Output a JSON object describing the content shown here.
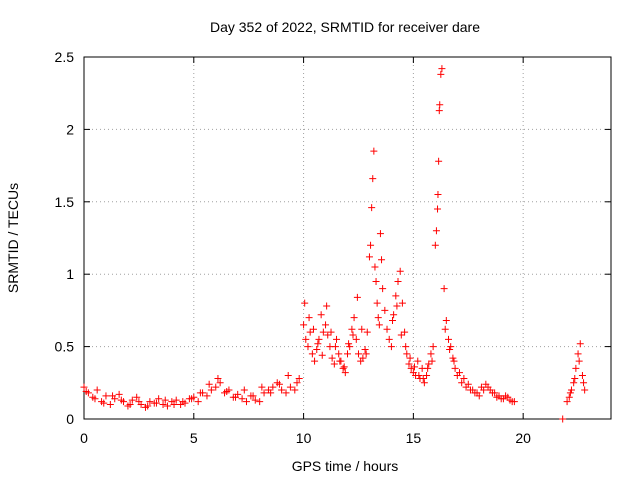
{
  "chart_data": {
    "type": "scatter",
    "title": "Day 352 of 2022, SRMTID for receiver dare",
    "xlabel": "GPS time / hours",
    "ylabel": "SRMTID / TECUs",
    "xlim": [
      0,
      24
    ],
    "ylim": [
      0,
      2.5
    ],
    "xticks": [
      "0",
      "5",
      "10",
      "15",
      "20"
    ],
    "xtick_values": [
      0,
      5,
      10,
      15,
      20
    ],
    "yticks": [
      "0",
      "0.5",
      "1",
      "1.5",
      "2",
      "2.5"
    ],
    "ytick_values": [
      0,
      0.5,
      1,
      1.5,
      2,
      2.5
    ],
    "grid": true,
    "marker": "+",
    "color": "#ff0000",
    "series": [
      {
        "name": "SRMTID",
        "x": [
          0.0,
          0.2,
          0.4,
          0.6,
          0.8,
          1.0,
          1.2,
          1.4,
          1.6,
          1.8,
          2.0,
          2.2,
          2.4,
          2.6,
          2.8,
          3.0,
          3.2,
          3.4,
          3.6,
          3.8,
          4.0,
          4.2,
          4.4,
          4.6,
          4.8,
          5.0,
          5.2,
          5.4,
          5.6,
          5.8,
          6.0,
          6.2,
          6.4,
          6.6,
          6.8,
          7.0,
          7.2,
          7.4,
          7.6,
          7.8,
          8.0,
          8.2,
          8.4,
          8.6,
          8.8,
          9.0,
          9.2,
          9.4,
          9.6,
          9.8,
          10.0,
          10.1,
          10.2,
          10.3,
          10.4,
          10.5,
          10.6,
          10.7,
          10.8,
          10.9,
          11.0,
          11.1,
          11.2,
          11.3,
          11.4,
          11.5,
          11.6,
          11.7,
          11.8,
          11.9,
          12.0,
          12.1,
          12.2,
          12.3,
          12.4,
          12.5,
          12.6,
          12.7,
          12.8,
          12.9,
          13.0,
          13.05,
          13.1,
          13.15,
          13.2,
          13.25,
          13.3,
          13.35,
          13.4,
          13.45,
          13.5,
          13.55,
          13.6,
          13.7,
          13.8,
          13.9,
          14.0,
          14.1,
          14.2,
          14.3,
          14.4,
          14.5,
          14.6,
          14.7,
          14.8,
          14.9,
          15.0,
          15.1,
          15.2,
          15.3,
          15.4,
          15.5,
          15.6,
          15.7,
          15.8,
          15.9,
          16.0,
          16.05,
          16.1,
          16.12,
          16.15,
          16.18,
          16.2,
          16.25,
          16.3,
          16.4,
          16.5,
          16.6,
          16.7,
          16.8,
          16.9,
          17.0,
          17.2,
          17.4,
          17.6,
          17.8,
          18.0,
          18.2,
          18.4,
          18.6,
          18.8,
          19.0,
          19.2,
          19.4,
          19.6,
          21.8,
          22.0,
          22.1,
          22.2,
          22.3,
          22.4,
          22.5,
          22.6,
          22.7,
          22.8,
          0.1,
          0.5,
          0.9,
          1.3,
          1.7,
          2.1,
          2.5,
          2.9,
          3.3,
          3.7,
          4.1,
          4.5,
          4.9,
          5.3,
          5.7,
          6.1,
          6.5,
          6.9,
          7.3,
          7.7,
          8.1,
          8.5,
          8.9,
          9.3,
          9.7,
          10.05,
          10.25,
          10.45,
          10.65,
          10.85,
          11.05,
          11.25,
          11.45,
          11.65,
          11.85,
          12.05,
          12.25,
          12.45,
          12.65,
          12.85,
          14.05,
          14.25,
          14.45,
          14.65,
          14.85,
          15.05,
          15.25,
          15.45,
          15.65,
          15.85,
          16.45,
          16.65,
          16.85,
          17.1,
          17.3,
          17.5,
          17.7,
          17.9,
          18.1,
          18.3,
          18.5,
          18.7,
          18.9,
          19.1,
          19.3,
          19.5,
          22.15,
          22.35,
          22.55,
          22.75
        ],
        "y": [
          0.22,
          0.18,
          0.15,
          0.2,
          0.12,
          0.16,
          0.1,
          0.14,
          0.17,
          0.12,
          0.09,
          0.13,
          0.15,
          0.1,
          0.08,
          0.12,
          0.11,
          0.14,
          0.1,
          0.09,
          0.12,
          0.13,
          0.1,
          0.11,
          0.14,
          0.15,
          0.12,
          0.18,
          0.16,
          0.2,
          0.22,
          0.25,
          0.18,
          0.2,
          0.15,
          0.17,
          0.14,
          0.12,
          0.16,
          0.13,
          0.12,
          0.18,
          0.2,
          0.22,
          0.25,
          0.2,
          0.18,
          0.22,
          0.2,
          0.28,
          0.65,
          0.55,
          0.5,
          0.6,
          0.45,
          0.4,
          0.48,
          0.55,
          0.72,
          0.6,
          0.65,
          0.58,
          0.5,
          0.42,
          0.38,
          0.55,
          0.45,
          0.4,
          0.35,
          0.32,
          0.45,
          0.5,
          0.62,
          0.7,
          0.55,
          0.45,
          0.4,
          0.42,
          0.48,
          0.6,
          1.12,
          1.2,
          1.46,
          1.66,
          1.85,
          1.05,
          0.95,
          0.8,
          0.7,
          0.65,
          1.28,
          1.1,
          0.9,
          0.75,
          0.62,
          0.55,
          0.5,
          0.72,
          0.85,
          0.95,
          1.02,
          0.8,
          0.6,
          0.45,
          0.38,
          0.35,
          0.32,
          0.3,
          0.4,
          0.28,
          0.35,
          0.25,
          0.3,
          0.38,
          0.45,
          0.5,
          1.2,
          1.3,
          1.45,
          1.55,
          1.78,
          2.13,
          2.17,
          2.38,
          2.42,
          0.9,
          0.68,
          0.55,
          0.5,
          0.42,
          0.35,
          0.3,
          0.25,
          0.22,
          0.2,
          0.18,
          0.16,
          0.2,
          0.22,
          0.18,
          0.15,
          0.14,
          0.16,
          0.13,
          0.12,
          0.0,
          0.12,
          0.15,
          0.2,
          0.25,
          0.35,
          0.45,
          0.52,
          0.3,
          0.2,
          0.19,
          0.14,
          0.11,
          0.16,
          0.13,
          0.1,
          0.12,
          0.09,
          0.11,
          0.13,
          0.1,
          0.12,
          0.14,
          0.18,
          0.24,
          0.28,
          0.19,
          0.15,
          0.2,
          0.16,
          0.22,
          0.18,
          0.24,
          0.3,
          0.25,
          0.8,
          0.7,
          0.62,
          0.52,
          0.44,
          0.78,
          0.6,
          0.5,
          0.4,
          0.36,
          0.52,
          0.58,
          0.84,
          0.62,
          0.45,
          0.68,
          0.78,
          0.58,
          0.5,
          0.42,
          0.36,
          0.3,
          0.28,
          0.35,
          0.4,
          0.62,
          0.48,
          0.4,
          0.32,
          0.28,
          0.24,
          0.2,
          0.18,
          0.22,
          0.24,
          0.2,
          0.18,
          0.16,
          0.14,
          0.15,
          0.12,
          0.18,
          0.28,
          0.4,
          0.25
        ]
      }
    ]
  }
}
